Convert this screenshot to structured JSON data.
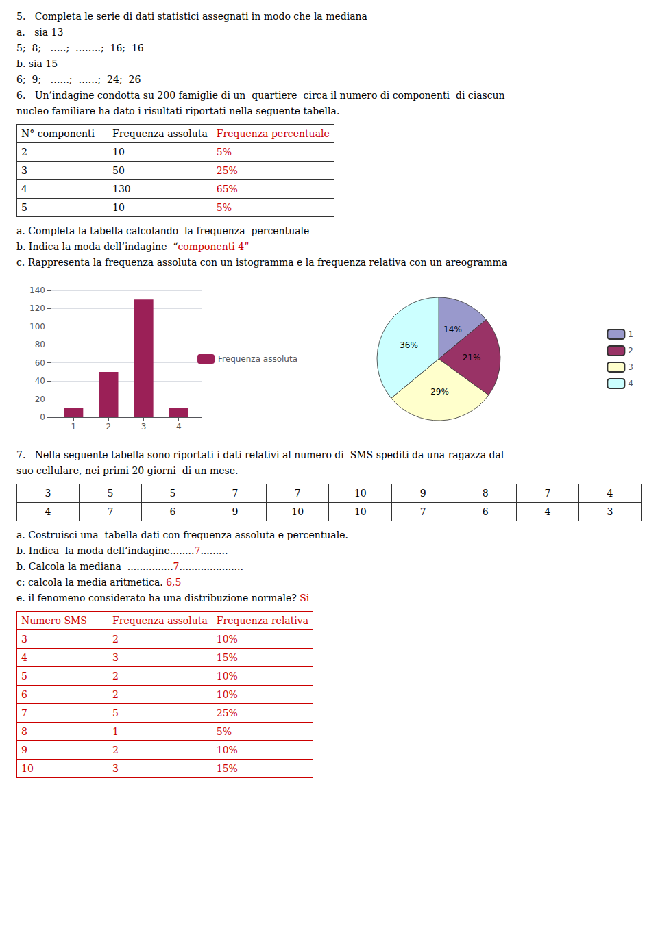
{
  "chart_data": [
    {
      "type": "bar",
      "x": [
        1,
        2,
        3,
        4
      ],
      "xlim": [
        0.35,
        4.65
      ],
      "xticks": [
        1,
        2,
        3,
        4
      ],
      "ylim": [
        0,
        140
      ],
      "yticks": [
        0,
        20,
        40,
        60,
        80,
        100,
        120,
        140
      ],
      "series": [
        {
          "name": "Frequenza assoluta",
          "color": "#9B2057",
          "values": [
            10,
            50,
            130,
            10
          ]
        }
      ],
      "grid": "y",
      "legend": "right",
      "annotations": [
        "5.   Completa le serie di dati statistici assegnati in modo che la mediana",
        "a.   sia 13",
        "5;  8;   …..;  ……..;  16;  16",
        "b. sia 15",
        "6;  9;   …...;  ……;  24;  26",
        "6.   Un’indagine condotta su 200 famiglie di un  quartiere  circa il numero di componenti  di ciascun",
        "nucleo familiare ha dato i risultati riportati nella seguente tabella.",
        {
          "headers": [
            "N° componenti",
            "Frequenza assoluta",
            "Frequenza percentuale"
          ],
          "rows": [
            [
              "2",
              "10",
              "5%"
            ],
            [
              "3",
              "50",
              "25%"
            ],
            [
              "4",
              "130",
              "65%"
            ],
            [
              "5",
              "10",
              "5%"
            ]
          ],
          "colors": [
            "#000000",
            "#000000",
            "#CC0000"
          ]
        },
        "a. Completa la tabella calcolando  la frequenza  percentuale",
        [
          "b. Indica la moda dell’indagine  “",
          {
            "text": "componenti 4”",
            "color": "#CC0000"
          }
        ],
        "c. Rappresenta la frequenza assoluta con un istogramma e la frequenza relativa con un areogramma"
      ]
    },
    {
      "type": "pie",
      "categories": [
        "1",
        "2",
        "3",
        "4"
      ],
      "values": [
        14,
        21,
        29,
        36
      ],
      "value_labels": [
        "14%",
        "21%",
        "29%",
        "36%"
      ],
      "colors": [
        "#9999CC",
        "#993366",
        "#FFFFCC",
        "#CCFFFF"
      ],
      "data_labels": true,
      "legend": "right",
      "annotations": [
        "7.   Nella seguente tabella sono riportati i dati relativi al numero di  SMS spediti da una ragazza dal",
        "suo cellulare, nei primi 20 giorni  di un mese.",
        {
          "rows": [
            [
              "3",
              "5",
              "5",
              "7",
              "7",
              "10",
              "9",
              "8",
              "7",
              "4"
            ],
            [
              "4",
              "7",
              "6",
              "9",
              "10",
              "10",
              "7",
              "6",
              "4",
              "3"
            ]
          ]
        },
        "a. Costruisci una  tabella dati con frequenza assoluta e percentuale.",
        [
          "b. Indica  la moda dell’indagine........",
          {
            "text": "7",
            "color": "#CC0000"
          },
          "........."
        ],
        [
          "b. Calcola la mediana  ...............",
          {
            "text": "7",
            "color": "#CC0000"
          },
          "....................."
        ],
        [
          "c: calcola la media aritmetica. ",
          {
            "text": "6,5",
            "color": "#CC0000"
          }
        ],
        [
          "e. il fenomeno considerato ha una distribuzione normale? ",
          {
            "text": "Si",
            "color": "#CC0000"
          }
        ],
        {
          "headers": [
            "Numero SMS",
            "Frequenza assoluta",
            "Frequenza relativa"
          ],
          "rows": [
            [
              "3",
              "2",
              "10%"
            ],
            [
              "4",
              "3",
              "15%"
            ],
            [
              "5",
              "2",
              "10%"
            ],
            [
              "6",
              "2",
              "10%"
            ],
            [
              "7",
              "5",
              "25%"
            ],
            [
              "8",
              "1",
              "5%"
            ],
            [
              "9",
              "2",
              "10%"
            ],
            [
              "10",
              "3",
              "15%"
            ]
          ],
          "color": "#CC0000"
        }
      ]
    }
  ]
}
